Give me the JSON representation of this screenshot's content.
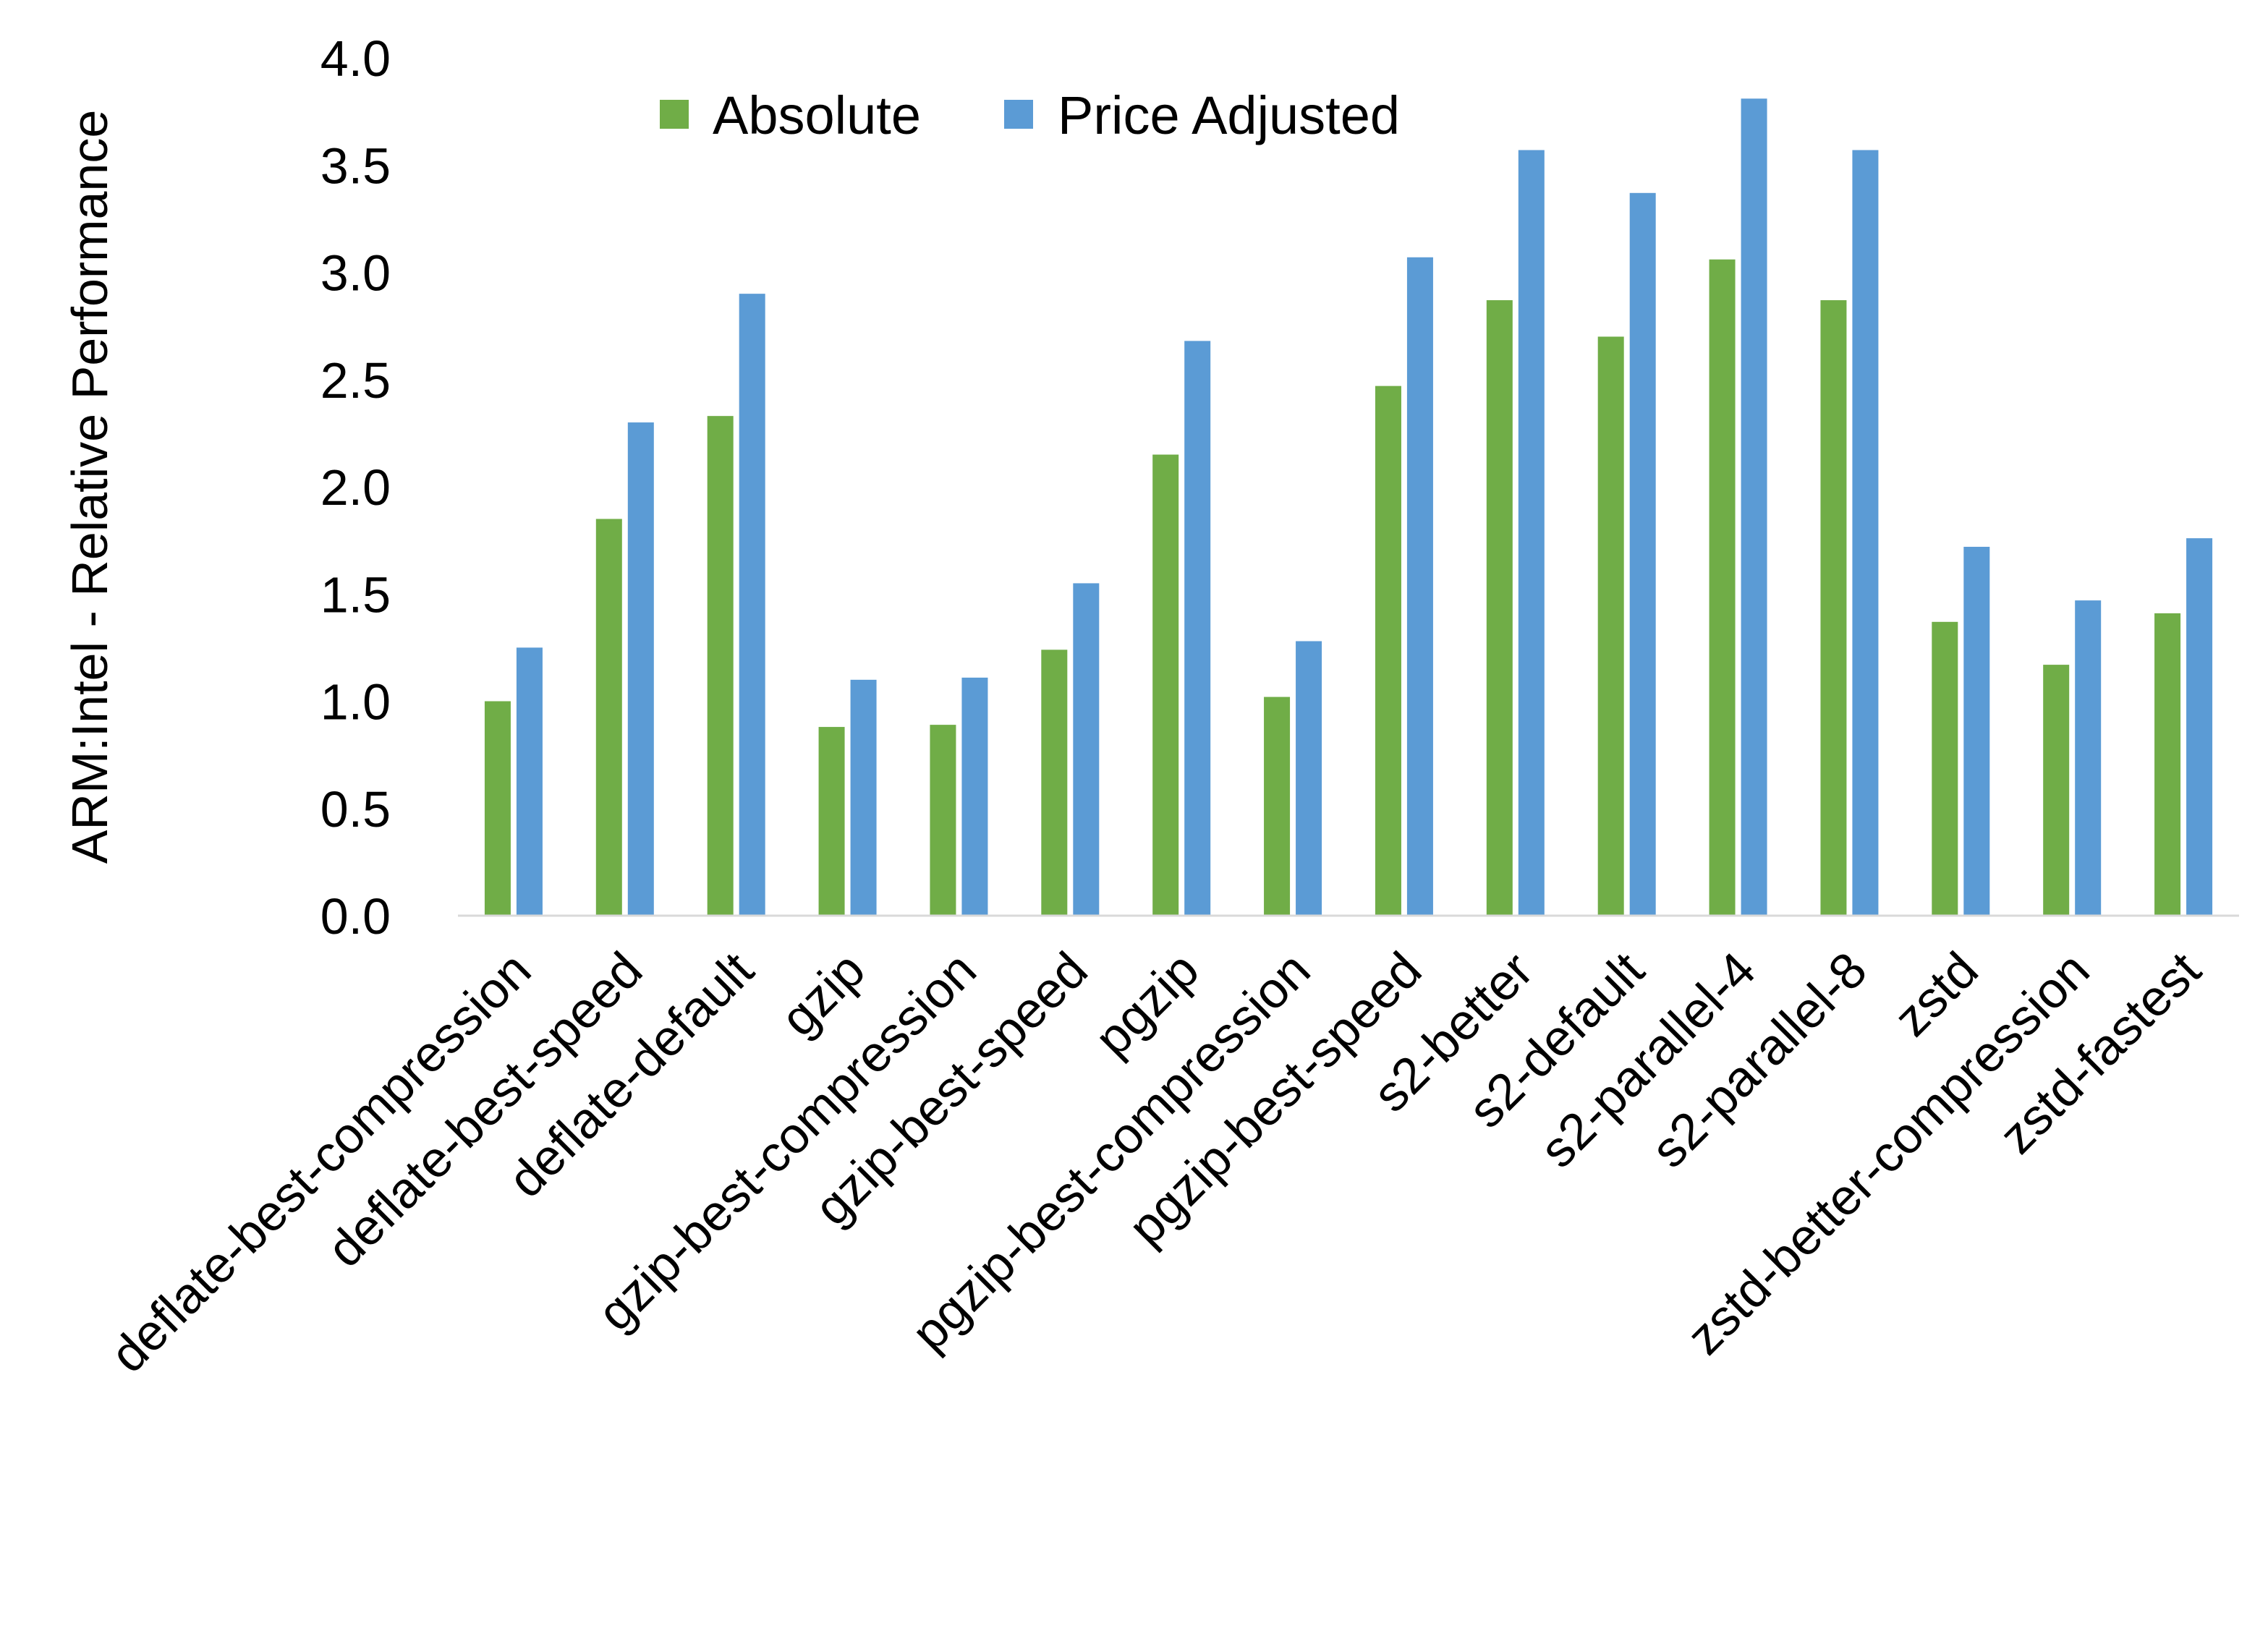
{
  "chart_data": {
    "type": "bar",
    "title": "",
    "xlabel": "",
    "ylabel": "ARM:Intel - Relative Performance",
    "ylim": [
      0,
      4.0
    ],
    "yticks": [
      "0.0",
      "0.5",
      "1.0",
      "1.5",
      "2.0",
      "2.5",
      "3.0",
      "3.5",
      "4.0"
    ],
    "grid": false,
    "legend_position": "top",
    "categories": [
      "deflate-best-compression",
      "deflate-best-speed",
      "deflate-default",
      "gzip",
      "gzip-best-compression",
      "gzip-best-speed",
      "pgzip",
      "pgzip-best-compression",
      "pgzip-best-speed",
      "s2-better",
      "s2-default",
      "s2-parallel-4",
      "s2-parallel-8",
      "zstd",
      "zstd-better-compression",
      "zstd-fastest"
    ],
    "series": [
      {
        "name": "Absolute",
        "color": "#70AD47",
        "values": [
          1.0,
          1.85,
          2.33,
          0.88,
          0.89,
          1.24,
          2.15,
          1.02,
          2.47,
          2.87,
          2.7,
          3.06,
          2.87,
          1.37,
          1.17,
          1.41
        ]
      },
      {
        "name": "Price Adjusted",
        "color": "#5B9BD5",
        "values": [
          1.25,
          2.3,
          2.9,
          1.1,
          1.11,
          1.55,
          2.68,
          1.28,
          3.07,
          3.57,
          3.37,
          3.81,
          3.57,
          1.72,
          1.47,
          1.76
        ]
      }
    ]
  }
}
